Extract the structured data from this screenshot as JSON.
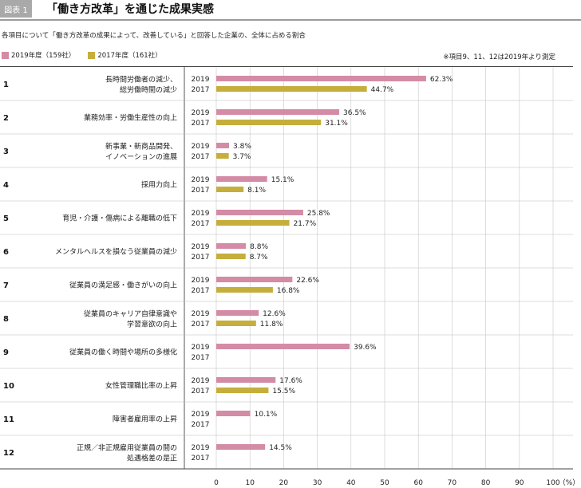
{
  "header": {
    "figure_label": "図表 1",
    "title": "「働き方改革」を通じた成果実感"
  },
  "subtitle": "各項目について「働き方改革の成果によって、改善している」と回答した企業の、全体に占める割合",
  "note": "※項目9、11、12は2019年より測定",
  "colors": {
    "s2019": "#d48ba6",
    "s2017": "#c5ae3c",
    "grid": "#c8c8c8",
    "divider": "#555555"
  },
  "chart_data": {
    "type": "bar",
    "orientation": "horizontal",
    "xlim": [
      0,
      100
    ],
    "x_ticks": [
      "0",
      "10",
      "20",
      "30",
      "40",
      "50",
      "60",
      "70",
      "80",
      "90",
      "100"
    ],
    "x_unit": "（%）",
    "legend": [
      {
        "name": "2019年度（159社）",
        "color": "#d48ba6"
      },
      {
        "name": "2017年度（161社）",
        "color": "#c5ae3c"
      }
    ],
    "items": [
      {
        "no": "1",
        "label": [
          "長時間労働者の減少、",
          "総労働時間の減少"
        ],
        "y2019": 62.3,
        "y2017": 44.7
      },
      {
        "no": "2",
        "label": [
          "業務効率・労働生産性の向上"
        ],
        "y2019": 36.5,
        "y2017": 31.1
      },
      {
        "no": "3",
        "label": [
          "新事業・新商品開発、",
          "イノベーションの進展"
        ],
        "y2019": 3.8,
        "y2017": 3.7
      },
      {
        "no": "4",
        "label": [
          "採用力向上"
        ],
        "y2019": 15.1,
        "y2017": 8.1
      },
      {
        "no": "5",
        "label": [
          "育児・介護・傷病による離職の低下"
        ],
        "y2019": 25.8,
        "y2017": 21.7
      },
      {
        "no": "6",
        "label": [
          "メンタルヘルスを損なう従業員の減少"
        ],
        "y2019": 8.8,
        "y2017": 8.7
      },
      {
        "no": "7",
        "label": [
          "従業員の満足感・働きがいの向上"
        ],
        "y2019": 22.6,
        "y2017": 16.8
      },
      {
        "no": "8",
        "label": [
          "従業員のキャリア自律意識や",
          "学習意欲の向上"
        ],
        "y2019": 12.6,
        "y2017": 11.8
      },
      {
        "no": "9",
        "label": [
          "従業員の働く時間や場所の多様化"
        ],
        "y2019": 39.6,
        "y2017": null
      },
      {
        "no": "10",
        "label": [
          "女性管理職比率の上昇"
        ],
        "y2019": 17.6,
        "y2017": 15.5
      },
      {
        "no": "11",
        "label": [
          "障害者雇用率の上昇"
        ],
        "y2019": 10.1,
        "y2017": null
      },
      {
        "no": "12",
        "label": [
          "正規／非正規雇用従業員の間の",
          "処遇格差の是正"
        ],
        "y2019": 14.5,
        "y2017": null
      }
    ],
    "year_labels": [
      "2019",
      "2017"
    ],
    "value_suffix": "%"
  }
}
